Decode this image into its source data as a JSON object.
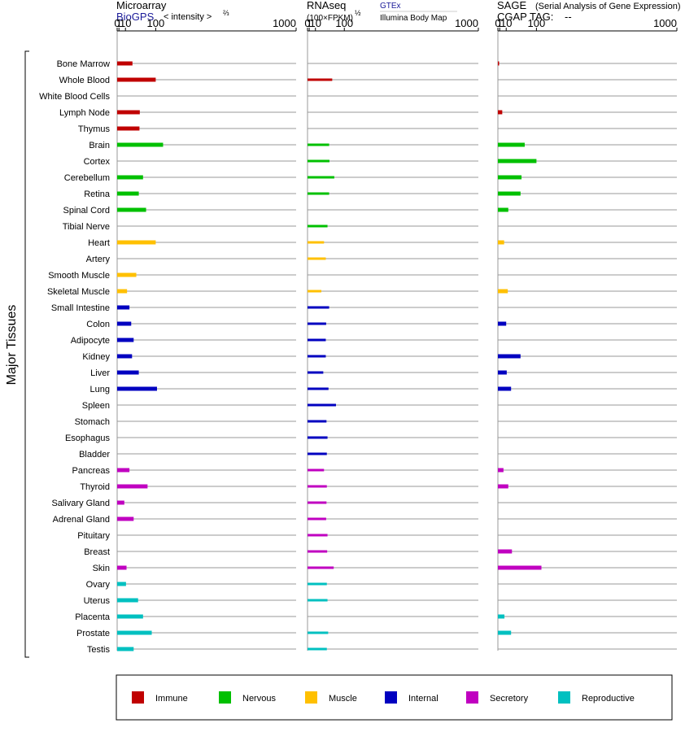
{
  "chart_data": {
    "type": "bar",
    "orientation": "horizontal",
    "y_axis_label": "Major Tissues",
    "categories": [
      "Bone Marrow",
      "Whole Blood",
      "White Blood Cells",
      "Lymph Node",
      "Thymus",
      "Brain",
      "Cortex",
      "Cerebellum",
      "Retina",
      "Spinal Cord",
      "Tibial Nerve",
      "Heart",
      "Artery",
      "Smooth Muscle",
      "Skeletal Muscle",
      "Small Intestine",
      "Colon",
      "Adipocyte",
      "Kidney",
      "Liver",
      "Lung",
      "Spleen",
      "Stomach",
      "Esophagus",
      "Bladder",
      "Pancreas",
      "Thyroid",
      "Salivary Gland",
      "Adrenal Gland",
      "Pituitary",
      "Breast",
      "Skin",
      "Ovary",
      "Uterus",
      "Placenta",
      "Prostate",
      "Testis"
    ],
    "groups": [
      "Immune",
      "Immune",
      "Immune",
      "Immune",
      "Immune",
      "Nervous",
      "Nervous",
      "Nervous",
      "Nervous",
      "Nervous",
      "Nervous",
      "Muscle",
      "Muscle",
      "Muscle",
      "Muscle",
      "Internal",
      "Internal",
      "Internal",
      "Internal",
      "Internal",
      "Internal",
      "Internal",
      "Internal",
      "Internal",
      "Internal",
      "Secretory",
      "Secretory",
      "Secretory",
      "Secretory",
      "Secretory",
      "Secretory",
      "Secretory",
      "Reproductive",
      "Reproductive",
      "Reproductive",
      "Reproductive",
      "Reproductive"
    ],
    "group_colors": {
      "Immune": "#c00000",
      "Nervous": "#00c000",
      "Muscle": "#ffc000",
      "Internal": "#0000c0",
      "Secretory": "#c000c0",
      "Reproductive": "#00c0c0"
    },
    "ticks": [
      "0",
      "1",
      "10",
      "100",
      "1000"
    ],
    "tick_values": [
      0,
      1,
      10,
      100,
      1000
    ],
    "panels": [
      {
        "name": "microarray",
        "title": "Microarray",
        "source": "BioGPS",
        "scale_label": "< intensity >",
        "scale_exp": "⅔",
        "xlim": [
          0,
          1000
        ],
        "values": [
          25,
          100,
          null,
          45,
          44,
          130,
          null,
          55,
          42,
          65,
          null,
          100,
          null,
          35,
          13,
          18,
          22,
          28,
          24,
          42,
          105,
          null,
          null,
          null,
          null,
          18,
          70,
          8,
          28,
          null,
          null,
          12,
          11,
          40,
          55,
          85,
          28
        ]
      },
      {
        "name": "rnaseq",
        "title": "RNAseq",
        "scale_label": "(100×FPKM)",
        "scale_exp": "½",
        "source": "GTEx",
        "source2": "Illumina Body Map",
        "xlim": [
          0,
          1000
        ],
        "values": [
          null,
          55,
          null,
          null,
          null,
          45,
          46,
          62,
          45,
          null,
          40,
          30,
          35,
          null,
          23,
          45,
          36,
          35,
          35,
          28,
          43,
          68,
          37,
          40,
          38,
          30,
          38,
          37,
          36,
          40,
          39,
          60,
          38,
          40,
          null,
          42,
          38
        ]
      },
      {
        "name": "sage",
        "title": "SAGE",
        "title_note": "(Serial Analysis of Gene Expression)",
        "tag_label": "CGAP TAG:",
        "tag_value": "--",
        "xlim": [
          0,
          1000
        ],
        "values": [
          0.2,
          null,
          null,
          3.8,
          null,
          58,
          100,
          48,
          45,
          14,
          null,
          6.5,
          null,
          null,
          13,
          null,
          10,
          null,
          45,
          11,
          20,
          null,
          null,
          null,
          null,
          5.5,
          14,
          null,
          null,
          null,
          22,
          120,
          null,
          null,
          7,
          20,
          null
        ]
      }
    ]
  },
  "legend": [
    {
      "label": "Immune",
      "color": "#c00000"
    },
    {
      "label": "Nervous",
      "color": "#00c000"
    },
    {
      "label": "Muscle",
      "color": "#ffc000"
    },
    {
      "label": "Internal",
      "color": "#0000c0"
    },
    {
      "label": "Secretory",
      "color": "#c000c0"
    },
    {
      "label": "Reproductive",
      "color": "#00c0c0"
    }
  ]
}
